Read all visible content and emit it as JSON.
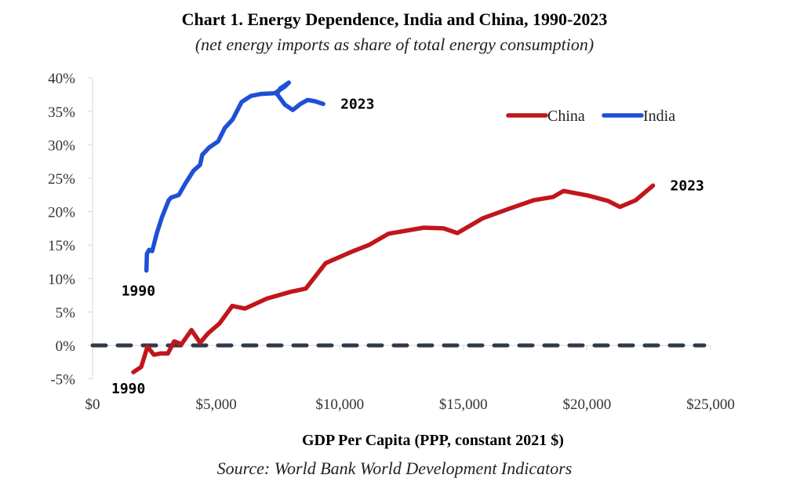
{
  "chart_data": {
    "type": "line",
    "title": "Chart 1. Energy Dependence, India and China, 1990-2023",
    "subtitle": "(net energy imports as share of total energy consumption)",
    "xlabel": "GDP Per Capita (PPP, constant 2021 $)",
    "ylabel": "",
    "source": "Source: World Bank World Development Indicators",
    "xlim": [
      0,
      25000
    ],
    "ylim": [
      -5,
      40
    ],
    "x_ticks": [
      "$0",
      "$5,000",
      "$10,000",
      "$15,000",
      "$20,000",
      "$25,000"
    ],
    "x_tick_values": [
      0,
      5000,
      10000,
      15000,
      20000,
      25000
    ],
    "y_ticks": [
      "-5%",
      "0%",
      "5%",
      "10%",
      "15%",
      "20%",
      "25%",
      "30%",
      "35%",
      "40%"
    ],
    "y_tick_values": [
      -5,
      0,
      5,
      10,
      15,
      20,
      25,
      30,
      35,
      40
    ],
    "reference_line": {
      "y": 0,
      "style": "dashed",
      "color": "#2f3a4a"
    },
    "legend_position": "top-right",
    "grid": false,
    "series": [
      {
        "name": "China",
        "color": "#c0161c",
        "start_label": "1990",
        "end_label": "2023",
        "x": [
          1650,
          1970,
          2220,
          2480,
          2760,
          3050,
          3300,
          3600,
          4000,
          4350,
          4670,
          5140,
          5650,
          6160,
          7050,
          8000,
          8630,
          9430,
          10540,
          11170,
          11970,
          13400,
          14200,
          14760,
          15780,
          16900,
          17840,
          18630,
          19050,
          20060,
          20860,
          21330,
          21970,
          22670
        ],
        "y": [
          -4.0,
          -3.2,
          -0.2,
          -1.4,
          -1.2,
          -1.2,
          0.6,
          0.2,
          2.3,
          0.4,
          1.8,
          3.3,
          5.9,
          5.5,
          7.0,
          8.0,
          8.5,
          12.3,
          14.1,
          15.0,
          16.7,
          17.6,
          17.5,
          16.8,
          19.0,
          20.5,
          21.7,
          22.2,
          23.1,
          22.4,
          21.6,
          20.7,
          21.7,
          23.9
        ]
      },
      {
        "name": "India",
        "color": "#1f4fd6",
        "start_label": "1990",
        "end_label": "2023",
        "x": [
          2180,
          2200,
          2290,
          2410,
          2600,
          2810,
          3080,
          3180,
          3490,
          3770,
          4080,
          4350,
          4440,
          4720,
          5080,
          5350,
          5670,
          6030,
          6410,
          6830,
          7370,
          7780,
          7940,
          7590,
          7460,
          7780,
          8100,
          8410,
          8700,
          9000,
          9330
        ],
        "y": [
          11.2,
          13.7,
          14.3,
          14.1,
          16.8,
          19.2,
          21.7,
          22.1,
          22.5,
          24.3,
          26.1,
          27.0,
          28.5,
          29.6,
          30.5,
          32.5,
          33.8,
          36.4,
          37.3,
          37.6,
          37.7,
          38.7,
          39.3,
          38.4,
          37.6,
          36.0,
          35.2,
          36.1,
          36.7,
          36.5,
          36.1
        ]
      }
    ]
  }
}
